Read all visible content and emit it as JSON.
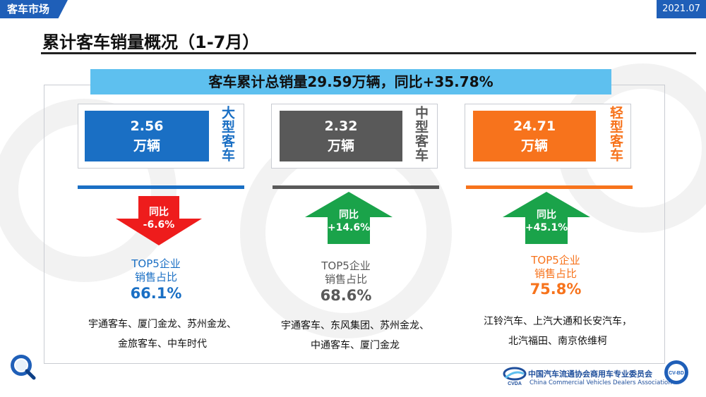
{
  "header": {
    "section_tag": "客车市场",
    "date_tag": "2021.07",
    "title": "累计客车销量概况（1-7月）"
  },
  "banner": "客车累计总销量29.59万辆，同比+35.78%",
  "categories": [
    {
      "value": "2.56",
      "unit": "万辆",
      "label": "大型客车",
      "yoy_label": "同比",
      "yoy": "-6.6%",
      "direction": "down",
      "top5_label_1": "TOP5企业",
      "top5_label_2": "销售占比",
      "top5_share": "66.1%",
      "companies_1": "宇通客车、厦门金龙、苏州金龙、",
      "companies_2": "金旅客车、中车时代",
      "color": "#1a6fc4"
    },
    {
      "value": "2.32",
      "unit": "万辆",
      "label": "中型客车",
      "yoy_label": "同比",
      "yoy": "+14.6%",
      "direction": "up",
      "top5_label_1": "TOP5企业",
      "top5_label_2": "销售占比",
      "top5_share": "68.6%",
      "companies_1": "宇通客车、东风集团、苏州金龙、",
      "companies_2": "中通客车、厦门金龙",
      "color": "#595959"
    },
    {
      "value": "24.71",
      "unit": "万辆",
      "label": "轻型客车",
      "yoy_label": "同比",
      "yoy": "+45.1%",
      "direction": "up",
      "top5_label_1": "TOP5企业",
      "top5_label_2": "销售占比",
      "top5_share": "75.8%",
      "companies_1": "江铃汽车、上汽大通和长安汽车，",
      "companies_2": "北汽福田、南京依维柯",
      "color": "#f7731c"
    }
  ],
  "colors": {
    "down_arrow": "#ee1c1c",
    "up_arrow": "#1aa34a",
    "banner": "#5ec0ef",
    "header_blue": "#1f5fb8"
  },
  "footer": {
    "org_cn": "中国汽车流通协会商用车专业委员会",
    "org_en": "China Commercial Vehicles Dealers Association",
    "logo_text": "CVDA",
    "badge_text": "CV-BD"
  }
}
